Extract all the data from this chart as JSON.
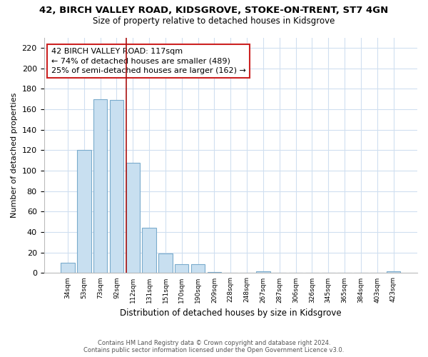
{
  "title": "42, BIRCH VALLEY ROAD, KIDSGROVE, STOKE-ON-TRENT, ST7 4GN",
  "subtitle": "Size of property relative to detached houses in Kidsgrove",
  "xlabel": "Distribution of detached houses by size in Kidsgrove",
  "ylabel": "Number of detached properties",
  "bar_labels": [
    "34sqm",
    "53sqm",
    "73sqm",
    "92sqm",
    "112sqm",
    "131sqm",
    "151sqm",
    "170sqm",
    "190sqm",
    "209sqm",
    "228sqm",
    "248sqm",
    "267sqm",
    "287sqm",
    "306sqm",
    "326sqm",
    "345sqm",
    "365sqm",
    "384sqm",
    "403sqm",
    "423sqm"
  ],
  "bar_values": [
    10,
    120,
    170,
    169,
    108,
    44,
    19,
    9,
    9,
    1,
    0,
    0,
    2,
    0,
    0,
    0,
    0,
    0,
    0,
    0,
    2
  ],
  "bar_color": "#c8dff0",
  "bar_edge_color": "#7aabcc",
  "ylim": [
    0,
    230
  ],
  "yticks": [
    0,
    20,
    40,
    60,
    80,
    100,
    120,
    140,
    160,
    180,
    200,
    220
  ],
  "vline_color": "#aa1111",
  "annotation_title": "42 BIRCH VALLEY ROAD: 117sqm",
  "annotation_line1": "← 74% of detached houses are smaller (489)",
  "annotation_line2": "25% of semi-detached houses are larger (162) →",
  "annotation_box_color": "white",
  "annotation_box_edge": "#cc2222",
  "footer_line1": "Contains HM Land Registry data © Crown copyright and database right 2024.",
  "footer_line2": "Contains public sector information licensed under the Open Government Licence v3.0.",
  "bg_color": "white",
  "grid_color": "#d0dff0"
}
